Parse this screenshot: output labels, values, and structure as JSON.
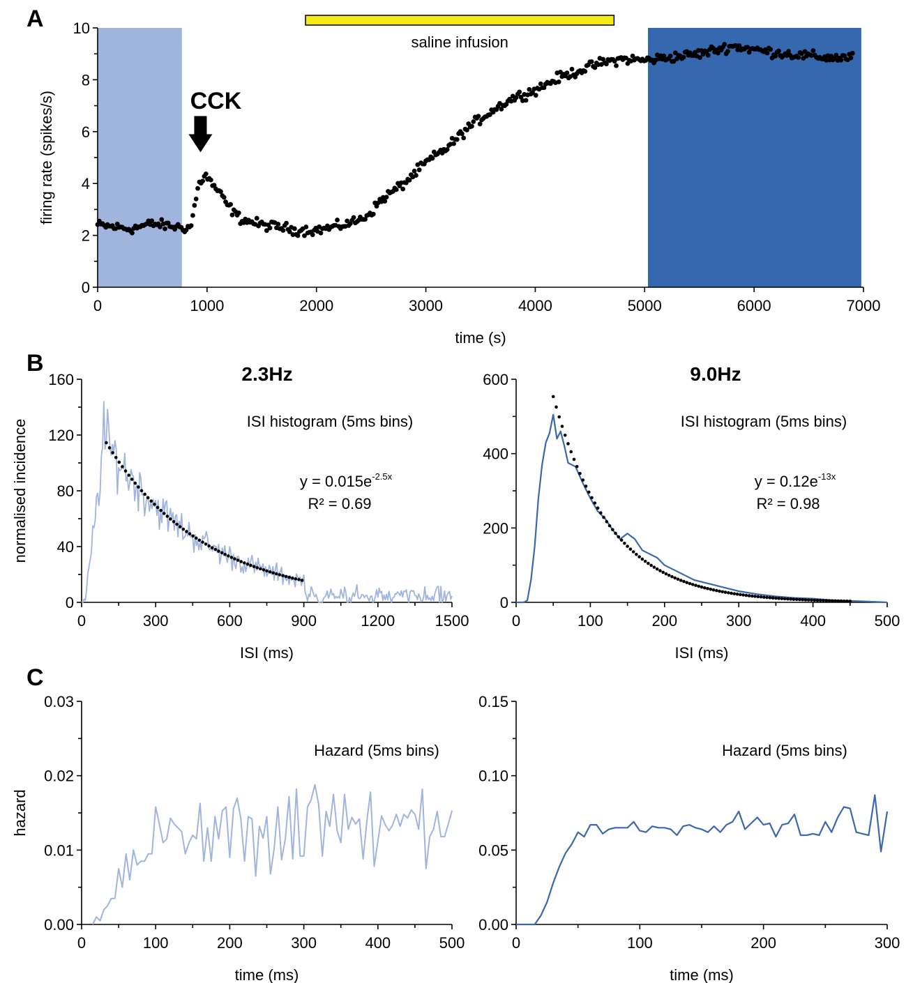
{
  "colors": {
    "light_blue_fill": "#9fb5dd",
    "dark_blue_fill": "#3668b0",
    "light_blue_line": "#9fb5dd",
    "dark_blue_line": "#3a67ae",
    "yellow_bar": "#f5ea14",
    "points": "#000000"
  },
  "panel_letters": {
    "a": "A",
    "b": "B",
    "c": "C"
  },
  "chart_data": [
    {
      "id": "A",
      "type": "scatter",
      "xlabel": "time (s)",
      "ylabel": "firing rate (spikes/s)",
      "xlim": [
        0,
        7000
      ],
      "ylim": [
        0,
        10
      ],
      "xticks": [
        "0",
        "1000",
        "2000",
        "3000",
        "4000",
        "5000",
        "6000",
        "7000"
      ],
      "xtick_values": [
        0,
        1000,
        2000,
        3000,
        4000,
        5000,
        6000,
        7000
      ],
      "yticks": [
        "0",
        "2",
        "4",
        "6",
        "8",
        "10"
      ],
      "ytick_values": [
        0,
        2,
        4,
        6,
        8,
        10
      ],
      "shaded_regions": [
        {
          "x0": 0,
          "x1": 770,
          "color": "light_blue_fill"
        },
        {
          "x0": 5030,
          "x1": 6980,
          "color": "dark_blue_fill"
        }
      ],
      "bar_annotation": {
        "label": "saline infusion",
        "x0": 1900,
        "x1": 4720
      },
      "arrow_annotation": {
        "label": "CCK",
        "x": 940,
        "y_top": 6.6,
        "y_tip": 5.2
      },
      "trend": [
        [
          0,
          2.4
        ],
        [
          300,
          2.25
        ],
        [
          500,
          2.45
        ],
        [
          770,
          2.3
        ],
        [
          850,
          2.3
        ],
        [
          920,
          3.9
        ],
        [
          980,
          4.35
        ],
        [
          1100,
          3.7
        ],
        [
          1200,
          3.1
        ],
        [
          1300,
          2.65
        ],
        [
          1500,
          2.4
        ],
        [
          1700,
          2.3
        ],
        [
          1800,
          2.2
        ],
        [
          2000,
          2.2
        ],
        [
          2200,
          2.35
        ],
        [
          2400,
          2.6
        ],
        [
          2500,
          2.9
        ],
        [
          2600,
          3.4
        ],
        [
          2800,
          4.0
        ],
        [
          3000,
          4.8
        ],
        [
          3200,
          5.4
        ],
        [
          3400,
          6.2
        ],
        [
          3600,
          6.8
        ],
        [
          3800,
          7.3
        ],
        [
          4000,
          7.6
        ],
        [
          4200,
          8.05
        ],
        [
          4400,
          8.35
        ],
        [
          4600,
          8.65
        ],
        [
          4800,
          8.8
        ],
        [
          5000,
          8.75
        ],
        [
          5200,
          8.85
        ],
        [
          5500,
          9.0
        ],
        [
          5800,
          9.3
        ],
        [
          6100,
          9.1
        ],
        [
          6400,
          8.95
        ],
        [
          6700,
          8.85
        ],
        [
          6900,
          8.85
        ]
      ]
    },
    {
      "id": "B-left",
      "type": "line",
      "title": "2.3Hz",
      "xlabel": "ISI (ms)",
      "ylabel": "normalised incidence",
      "xlim": [
        0,
        1500
      ],
      "ylim": [
        0,
        160
      ],
      "xticks": [
        "0",
        "300",
        "600",
        "900",
        "1200",
        "1500"
      ],
      "xtick_values": [
        0,
        300,
        600,
        900,
        1200,
        1500
      ],
      "yticks": [
        "0",
        "40",
        "80",
        "120",
        "160"
      ],
      "ytick_values": [
        0,
        40,
        80,
        120,
        160
      ],
      "legend_text": "ISI histogram (5ms bins)",
      "equation": {
        "prefix": "y = 0.015e",
        "exponent": "-2.5x",
        "r2": "R² = 0.69"
      },
      "fit": {
        "a": 147,
        "k": 2.5,
        "x0": 100,
        "x1": 900,
        "style": "dotted"
      },
      "series": [
        {
          "color": "light_blue_line",
          "bin_ms": 5,
          "model": "rise_decay",
          "peak": 144,
          "peak_x": 90
        }
      ]
    },
    {
      "id": "B-right",
      "type": "line",
      "title": "9.0Hz",
      "xlabel": "ISI (ms)",
      "ylabel": "",
      "xlim": [
        0,
        500
      ],
      "ylim": [
        0,
        600
      ],
      "xticks": [
        "0",
        "100",
        "200",
        "300",
        "400",
        "500"
      ],
      "xtick_values": [
        0,
        100,
        200,
        300,
        400,
        500
      ],
      "yticks": [
        "0",
        "200",
        "400",
        "600"
      ],
      "ytick_values": [
        0,
        200,
        400,
        600
      ],
      "legend_text": "ISI histogram (5ms bins)",
      "equation": {
        "prefix": "y = 0.12e",
        "exponent": "-13x",
        "r2": "R² = 0.98"
      },
      "fit": {
        "a": 1060,
        "k": 13,
        "x0": 50,
        "x1": 450,
        "style": "dotted"
      },
      "series": [
        {
          "color": "dark_blue_line",
          "x": [
            0,
            10,
            15,
            20,
            25,
            30,
            35,
            40,
            45,
            50,
            55,
            60,
            65,
            70,
            80,
            90,
            100,
            110,
            120,
            130,
            140,
            150,
            160,
            170,
            180,
            190,
            200,
            220,
            240,
            260,
            280,
            300,
            325,
            350,
            375,
            400,
            425,
            450,
            475,
            500
          ],
          "y": [
            0,
            0,
            5,
            60,
            150,
            280,
            370,
            430,
            455,
            505,
            440,
            460,
            420,
            375,
            365,
            320,
            280,
            245,
            225,
            195,
            170,
            185,
            170,
            140,
            130,
            120,
            100,
            80,
            60,
            50,
            40,
            30,
            22,
            16,
            12,
            10,
            6,
            4,
            2,
            0
          ]
        }
      ]
    },
    {
      "id": "C-left",
      "type": "line",
      "title": "",
      "xlabel": "time (ms)",
      "ylabel": "hazard",
      "xlim": [
        0,
        500
      ],
      "ylim": [
        0,
        0.03
      ],
      "xticks": [
        "0",
        "100",
        "200",
        "300",
        "400",
        "500"
      ],
      "xtick_values": [
        0,
        100,
        200,
        300,
        400,
        500
      ],
      "yticks": [
        "0.00",
        "0.01",
        "0.02",
        "0.03"
      ],
      "ytick_values": [
        0,
        0.01,
        0.02,
        0.03
      ],
      "legend_text": "Hazard (5ms bins)",
      "series": [
        {
          "color": "light_blue_line",
          "x": [
            15,
            20,
            25,
            30,
            35,
            40,
            45,
            50,
            55,
            60,
            65,
            70,
            75,
            80,
            85,
            90,
            95,
            100,
            105,
            110,
            115,
            120,
            125,
            130,
            135,
            140,
            145,
            150,
            155,
            160,
            165,
            170,
            175,
            180,
            185,
            190,
            195,
            200,
            205,
            210,
            215,
            220,
            225,
            230,
            235,
            240,
            245,
            250,
            255,
            260,
            265,
            270,
            275,
            280,
            285,
            290,
            295,
            300,
            305,
            310,
            315,
            320,
            325,
            330,
            335,
            340,
            345,
            350,
            355,
            360,
            365,
            370,
            375,
            380,
            385,
            390,
            395,
            400,
            405,
            410,
            415,
            420,
            425,
            430,
            435,
            440,
            445,
            450,
            455,
            460,
            465,
            470,
            475,
            480,
            485,
            490,
            495,
            500
          ],
          "y": [
            0.0,
            0.001,
            0.0005,
            0.002,
            0.0025,
            0.0035,
            0.0035,
            0.0075,
            0.005,
            0.0095,
            0.006,
            0.01,
            0.008,
            0.0085,
            0.0085,
            0.0095,
            0.0095,
            0.0158,
            0.0135,
            0.011,
            0.0115,
            0.0143,
            0.0135,
            0.013,
            0.0125,
            0.0095,
            0.011,
            0.012,
            0.0115,
            0.0163,
            0.0085,
            0.013,
            0.0085,
            0.0145,
            0.0115,
            0.0153,
            0.0158,
            0.009,
            0.0155,
            0.017,
            0.0142,
            0.0085,
            0.0145,
            0.0142,
            0.0065,
            0.0132,
            0.0116,
            0.0145,
            0.0068,
            0.0102,
            0.0158,
            0.0087,
            0.0115,
            0.0172,
            0.0088,
            0.0182,
            0.0092,
            0.0092,
            0.0158,
            0.0168,
            0.0188,
            0.0162,
            0.0092,
            0.0152,
            0.0132,
            0.0175,
            0.0126,
            0.011,
            0.0175,
            0.0128,
            0.0144,
            0.0135,
            0.0142,
            0.0088,
            0.0138,
            0.0178,
            0.0078,
            0.0112,
            0.0146,
            0.0134,
            0.0126,
            0.0134,
            0.0148,
            0.0132,
            0.0148,
            0.0143,
            0.0154,
            0.0148,
            0.0128,
            0.0182,
            0.0075,
            0.0118,
            0.0128,
            0.0152,
            0.0118,
            0.0118,
            0.0135,
            0.0153
          ]
        }
      ]
    },
    {
      "id": "C-right",
      "type": "line",
      "title": "",
      "xlabel": "time (ms)",
      "ylabel": "",
      "xlim": [
        0,
        300
      ],
      "ylim": [
        0,
        0.15
      ],
      "xticks": [
        "0",
        "100",
        "200",
        "300"
      ],
      "xtick_values": [
        0,
        100,
        200,
        300
      ],
      "yticks": [
        "0.00",
        "0.05",
        "0.10",
        "0.15"
      ],
      "ytick_values": [
        0,
        0.05,
        0.1,
        0.15
      ],
      "legend_text": "Hazard (5ms bins)",
      "series": [
        {
          "color": "dark_blue_line",
          "x": [
            0,
            10,
            15,
            20,
            25,
            30,
            35,
            40,
            45,
            50,
            55,
            60,
            65,
            70,
            75,
            80,
            85,
            90,
            95,
            100,
            105,
            110,
            115,
            120,
            125,
            130,
            135,
            140,
            145,
            150,
            155,
            160,
            165,
            170,
            175,
            180,
            185,
            190,
            195,
            200,
            205,
            210,
            215,
            220,
            225,
            230,
            235,
            240,
            245,
            250,
            255,
            260,
            265,
            270,
            275,
            280,
            285,
            290,
            295,
            300
          ],
          "y": [
            0.0,
            0.0,
            0.0,
            0.006,
            0.015,
            0.028,
            0.039,
            0.048,
            0.054,
            0.062,
            0.059,
            0.067,
            0.067,
            0.061,
            0.064,
            0.065,
            0.065,
            0.065,
            0.069,
            0.063,
            0.062,
            0.066,
            0.065,
            0.065,
            0.064,
            0.06,
            0.066,
            0.067,
            0.065,
            0.064,
            0.062,
            0.066,
            0.062,
            0.067,
            0.069,
            0.076,
            0.064,
            0.068,
            0.072,
            0.067,
            0.068,
            0.059,
            0.067,
            0.068,
            0.074,
            0.06,
            0.06,
            0.061,
            0.06,
            0.069,
            0.062,
            0.072,
            0.079,
            0.078,
            0.062,
            0.061,
            0.06,
            0.087,
            0.049,
            0.076
          ]
        }
      ]
    }
  ]
}
